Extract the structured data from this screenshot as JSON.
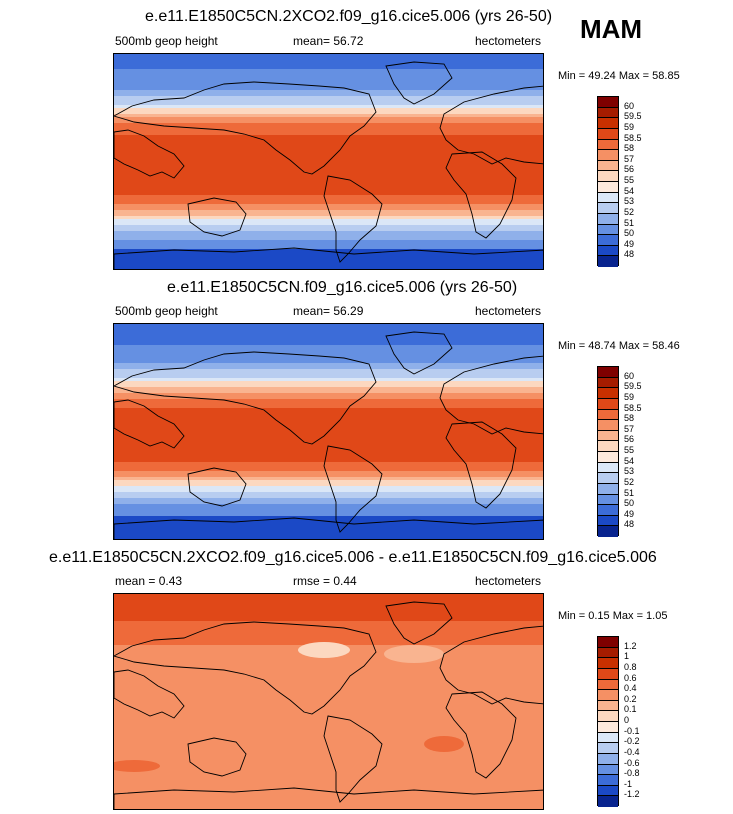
{
  "season": "MAM",
  "panels": [
    {
      "title": "e.e11.E1850C5CN.2XCO2.f09_g16.cice5.006 (yrs 26-50)",
      "left_label": "500mb geop height",
      "mid_label": "mean=  56.72",
      "units": "hectometers",
      "minmax": "Min =  49.24 Max =  58.85",
      "colorbar_labels": [
        "60",
        "59.5",
        "59",
        "58.5",
        "58",
        "57",
        "56",
        "55",
        "54",
        "53",
        "52",
        "51",
        "50",
        "49",
        "48"
      ]
    },
    {
      "title": "e.e11.E1850C5CN.f09_g16.cice5.006 (yrs 26-50)",
      "left_label": "500mb geop height",
      "mid_label": "mean=  56.29",
      "units": "hectometers",
      "minmax": "Min =  48.74 Max =  58.46",
      "colorbar_labels": [
        "60",
        "59.5",
        "59",
        "58.5",
        "58",
        "57",
        "56",
        "55",
        "54",
        "53",
        "52",
        "51",
        "50",
        "49",
        "48"
      ]
    },
    {
      "title": "e.e11.E1850C5CN.2XCO2.f09_g16.cice5.006 - e.e11.E1850C5CN.f09_g16.cice5.006",
      "left_label": "mean =  0.43",
      "mid_label": "rmse =  0.44",
      "units": "hectometers",
      "minmax": "Min =  0.15 Max =  1.05",
      "colorbar_labels": [
        "1.2",
        "1",
        "0.8",
        "0.6",
        "0.4",
        "0.2",
        "0.1",
        "0",
        "-0.1",
        "-0.2",
        "-0.4",
        "-0.6",
        "-0.8",
        "-1",
        "-1.2"
      ]
    }
  ],
  "colors": {
    "scale": [
      "#7f0000",
      "#a51c00",
      "#c83000",
      "#e04818",
      "#ee6a3a",
      "#f59064",
      "#f9b490",
      "#fcd8c0",
      "#fde9dc",
      "#dbe7f7",
      "#b8cdf0",
      "#8fb0ea",
      "#6590e2",
      "#3c6cd8",
      "#1b49c6",
      "#08248f"
    ]
  }
}
